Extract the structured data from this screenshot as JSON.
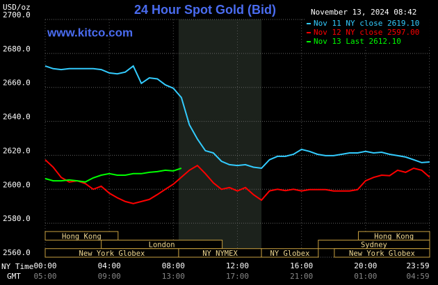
{
  "chart_data": {
    "type": "line",
    "title": "24 Hour Spot Gold (Bid)",
    "timestamp": "November 13, 2024 08:42",
    "unit_label": "USD/oz",
    "watermark": "www.kitco.com",
    "x_row_label": "NY Time",
    "x2_row_label": "GMT",
    "xlim": [
      0,
      24
    ],
    "ylim": [
      2560,
      2700
    ],
    "yticks": [
      {
        "value": 2560,
        "label": "2560.0"
      },
      {
        "value": 2580,
        "label": "2580.0"
      },
      {
        "value": 2600,
        "label": "2600.0"
      },
      {
        "value": 2620,
        "label": "2620.0"
      },
      {
        "value": 2640,
        "label": "2640.0"
      },
      {
        "value": 2660,
        "label": "2660.0"
      },
      {
        "value": 2680,
        "label": "2680.0"
      },
      {
        "value": 2700,
        "label": "2700.0"
      }
    ],
    "xticks": [
      {
        "value": 0,
        "label": "00:00"
      },
      {
        "value": 4,
        "label": "04:00"
      },
      {
        "value": 8,
        "label": "08:00"
      },
      {
        "value": 12,
        "label": "12:00"
      },
      {
        "value": 16,
        "label": "16:00"
      },
      {
        "value": 20,
        "label": "20:00"
      },
      {
        "value": 23.983,
        "label": "23:59"
      }
    ],
    "x2ticks": [
      {
        "value": 0,
        "label": "05:00"
      },
      {
        "value": 4,
        "label": "09:00"
      },
      {
        "value": 8,
        "label": "13:00"
      },
      {
        "value": 12,
        "label": "17:00"
      },
      {
        "value": 16,
        "label": "21:00"
      },
      {
        "value": 20,
        "label": "01:00"
      },
      {
        "value": 23.983,
        "label": "04:59"
      }
    ],
    "shaded": [
      8.33,
      13.5
    ],
    "session_rows": [
      [
        {
          "name": "Hong Kong",
          "start": 0,
          "end": 4.55
        },
        {
          "name": "Hong Kong",
          "start": 19.55,
          "end": 24
        }
      ],
      [
        {
          "name": "London",
          "start": 3.5,
          "end": 11.05
        },
        {
          "name": "Sydney",
          "start": 17.05,
          "end": 24
        }
      ],
      [
        {
          "name": "New York Globex",
          "start": 0,
          "end": 8.33
        },
        {
          "name": "NY NYMEX",
          "start": 8.33,
          "end": 13.5
        },
        {
          "name": "NY Globex",
          "start": 13.5,
          "end": 17.05
        },
        {
          "name": "New York Globex",
          "start": 18.05,
          "end": 24
        }
      ]
    ],
    "x": [
      0,
      0.5,
      1,
      1.5,
      2,
      2.5,
      3,
      3.5,
      4,
      4.5,
      5,
      5.5,
      6,
      6.5,
      7,
      7.5,
      8,
      8.5,
      9,
      9.5,
      10,
      10.5,
      11,
      11.5,
      12,
      12.5,
      13,
      13.5,
      14,
      14.5,
      15,
      15.5,
      16,
      16.5,
      17,
      17.5,
      18,
      18.5,
      19,
      19.5,
      20,
      20.5,
      21,
      21.5,
      22,
      22.5,
      23,
      23.5,
      24
    ],
    "series": [
      {
        "name": "Nov 11 NY close 2619.10",
        "color": "#33ccff",
        "values": [
          2672.6,
          2671,
          2670.5,
          2671,
          2671,
          2671,
          2671,
          2670.5,
          2668.5,
          2668,
          2669,
          2672.6,
          2662.4,
          2665.6,
          2665,
          2661.5,
          2659.5,
          2654,
          2638,
          2629.6,
          2622.7,
          2621.4,
          2616.5,
          2614.5,
          2614,
          2614.5,
          2613,
          2612.4,
          2617.4,
          2619.4,
          2619.4,
          2620.6,
          2623.5,
          2622.3,
          2620.6,
          2619.8,
          2619.8,
          2620.6,
          2621.4,
          2621.4,
          2622.3,
          2621.4,
          2621.8,
          2620.6,
          2619.8,
          2619,
          2617.4,
          2615.7,
          2616.1
        ]
      },
      {
        "name": "Nov 12 NY close 2597.00",
        "color": "#ff0000",
        "values": [
          2617.4,
          2613,
          2607,
          2604.3,
          2605,
          2603.4,
          2600,
          2601.8,
          2597.7,
          2595,
          2592.8,
          2591.6,
          2592.8,
          2594,
          2596.9,
          2600,
          2603,
          2607.1,
          2611.2,
          2614,
          2609.2,
          2603.8,
          2600,
          2601,
          2599,
          2601,
          2596.9,
          2593.6,
          2599,
          2600,
          2599.2,
          2600,
          2599,
          2599.8,
          2599.8,
          2599.8,
          2599,
          2599,
          2599,
          2599.8,
          2605,
          2607,
          2608.3,
          2608,
          2611.2,
          2610,
          2612.4,
          2611.2,
          2607.1
        ]
      },
      {
        "name": "Nov 13 Last 2612.10",
        "color": "#00ff00",
        "values": [
          2606.3,
          2605,
          2605,
          2605.5,
          2605,
          2604.3,
          2606.7,
          2608.3,
          2609.2,
          2608.3,
          2608.3,
          2609.2,
          2609.2,
          2610,
          2610.4,
          2611.2,
          2610.8,
          2612.4,
          null,
          null,
          null,
          null,
          null,
          null,
          null,
          null,
          null,
          null,
          null,
          null,
          null,
          null,
          null,
          null,
          null,
          null,
          null,
          null,
          null,
          null,
          null,
          null,
          null,
          null,
          null,
          null,
          null,
          null,
          null
        ]
      }
    ],
    "grid": true
  }
}
